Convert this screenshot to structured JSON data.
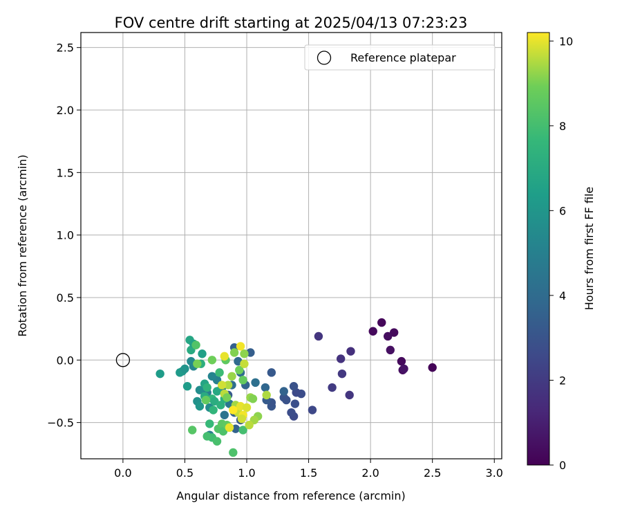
{
  "chart_data": {
    "type": "scatter",
    "title": "FOV centre drift starting at 2025/04/13 07:23:23",
    "xlabel": "Angular distance from reference (arcmin)",
    "ylabel": "Rotation from reference (arcmin)",
    "xlim": [
      -0.34,
      3.06
    ],
    "ylim": [
      -0.79,
      2.62
    ],
    "xticks": [
      "0.0",
      "0.5",
      "1.0",
      "1.5",
      "2.0",
      "2.5",
      "3.0"
    ],
    "yticks": [
      "−0.5",
      "0.0",
      "0.5",
      "1.0",
      "1.5",
      "2.0",
      "2.5"
    ],
    "grid": true,
    "legend": {
      "position": "top-right",
      "entries": [
        "Reference platepar"
      ]
    },
    "reference_point": {
      "name": "Reference platepar",
      "x": 0.0,
      "y": 0.0
    },
    "colorbar": {
      "label": "Hours from first FF file",
      "colormap": "viridis",
      "range": [
        0,
        10.2
      ],
      "ticks": [
        "0",
        "2",
        "4",
        "6",
        "8",
        "10"
      ]
    },
    "series": [
      {
        "points": [
          [
            2.5,
            -0.06,
            0.1
          ],
          [
            2.09,
            0.3,
            0.2
          ],
          [
            2.02,
            0.23,
            0.3
          ],
          [
            2.19,
            0.22,
            0.3
          ],
          [
            2.14,
            0.19,
            0.4
          ],
          [
            2.16,
            0.08,
            0.5
          ],
          [
            2.25,
            -0.01,
            0.3
          ],
          [
            2.26,
            -0.08,
            0.4
          ],
          [
            2.27,
            -0.07,
            0.6
          ],
          [
            1.84,
            0.07,
            1.6
          ],
          [
            1.58,
            0.19,
            1.8
          ],
          [
            1.76,
            0.01,
            1.7
          ],
          [
            1.77,
            -0.11,
            1.9
          ],
          [
            1.69,
            -0.22,
            2.0
          ],
          [
            1.83,
            -0.28,
            1.8
          ],
          [
            1.53,
            -0.4,
            2.5
          ],
          [
            1.44,
            -0.27,
            2.7
          ],
          [
            1.4,
            -0.26,
            2.6
          ],
          [
            1.38,
            -0.21,
            2.9
          ],
          [
            1.39,
            -0.35,
            2.8
          ],
          [
            1.38,
            -0.45,
            2.6
          ],
          [
            1.36,
            -0.42,
            2.7
          ],
          [
            1.3,
            -0.3,
            3.0
          ],
          [
            1.32,
            -0.32,
            2.9
          ],
          [
            1.3,
            -0.25,
            3.6
          ],
          [
            1.2,
            -0.1,
            3.2
          ],
          [
            1.2,
            -0.37,
            3.1
          ],
          [
            1.2,
            -0.34,
            3.0
          ],
          [
            1.16,
            -0.32,
            3.3
          ],
          [
            1.15,
            -0.22,
            3.8
          ],
          [
            1.07,
            -0.18,
            4.2
          ],
          [
            1.03,
            0.06,
            3.4
          ],
          [
            0.9,
            0.1,
            3.5
          ],
          [
            0.93,
            -0.01,
            3.9
          ],
          [
            0.95,
            -0.1,
            4.0
          ],
          [
            0.99,
            -0.2,
            3.7
          ],
          [
            0.88,
            -0.2,
            4.1
          ],
          [
            0.85,
            -0.28,
            3.3
          ],
          [
            0.9,
            -0.42,
            3.5
          ],
          [
            0.91,
            -0.55,
            3.6
          ],
          [
            0.95,
            -0.48,
            3.2
          ],
          [
            0.82,
            -0.44,
            4.4
          ],
          [
            0.86,
            -0.35,
            4.5
          ],
          [
            0.8,
            -0.22,
            4.8
          ],
          [
            0.76,
            -0.16,
            5.0
          ],
          [
            0.72,
            -0.13,
            5.2
          ],
          [
            0.68,
            -0.26,
            4.8
          ],
          [
            0.7,
            -0.38,
            5.5
          ],
          [
            0.7,
            -0.6,
            4.9
          ],
          [
            0.62,
            -0.24,
            5.6
          ],
          [
            0.6,
            -0.33,
            5.8
          ],
          [
            0.62,
            -0.37,
            6.0
          ],
          [
            0.55,
            -0.01,
            5.4
          ],
          [
            0.57,
            -0.05,
            5.3
          ],
          [
            0.52,
            -0.21,
            6.3
          ],
          [
            0.48,
            -0.09,
            6.1
          ],
          [
            0.46,
            -0.1,
            6.2
          ],
          [
            0.5,
            -0.07,
            5.9
          ],
          [
            0.3,
            -0.11,
            6.3
          ],
          [
            0.54,
            0.16,
            6.8
          ],
          [
            0.55,
            0.08,
            7.0
          ],
          [
            0.57,
            0.13,
            6.6
          ],
          [
            0.64,
            0.05,
            6.5
          ],
          [
            0.63,
            -0.03,
            7.2
          ],
          [
            0.66,
            -0.19,
            6.7
          ],
          [
            0.68,
            -0.22,
            7.4
          ],
          [
            0.66,
            -0.29,
            7.0
          ],
          [
            0.72,
            -0.31,
            7.6
          ],
          [
            0.74,
            -0.33,
            7.1
          ],
          [
            0.76,
            -0.25,
            6.9
          ],
          [
            0.73,
            -0.4,
            7.5
          ],
          [
            0.78,
            -0.1,
            7.8
          ],
          [
            0.82,
            -0.31,
            7.2
          ],
          [
            0.79,
            -0.36,
            7.3
          ],
          [
            0.7,
            -0.51,
            7.7
          ],
          [
            0.72,
            -0.62,
            7.9
          ],
          [
            0.68,
            -0.61,
            8.0
          ],
          [
            0.76,
            -0.65,
            8.1
          ],
          [
            0.77,
            -0.55,
            8.3
          ],
          [
            0.8,
            -0.51,
            8.5
          ],
          [
            0.81,
            -0.57,
            8.2
          ],
          [
            0.84,
            -0.52,
            8.6
          ],
          [
            0.86,
            -0.54,
            8.8
          ],
          [
            0.89,
            -0.74,
            8.2
          ],
          [
            0.97,
            -0.56,
            8.0
          ],
          [
            0.56,
            -0.56,
            8.4
          ],
          [
            0.59,
            0.12,
            8.3
          ],
          [
            0.67,
            -0.32,
            8.7
          ],
          [
            0.6,
            -0.03,
            9.0
          ],
          [
            0.72,
            0.0,
            8.9
          ],
          [
            0.83,
            0.0,
            8.6
          ],
          [
            0.9,
            0.06,
            9.1
          ],
          [
            0.98,
            0.05,
            9.2
          ],
          [
            0.88,
            -0.13,
            9.3
          ],
          [
            0.97,
            -0.16,
            8.7
          ],
          [
            0.94,
            -0.08,
            8.9
          ],
          [
            0.85,
            -0.2,
            9.5
          ],
          [
            0.8,
            -0.2,
            9.8
          ],
          [
            0.82,
            -0.27,
            9.6
          ],
          [
            0.84,
            -0.3,
            9.0
          ],
          [
            0.91,
            -0.36,
            9.4
          ],
          [
            0.93,
            -0.42,
            9.7
          ],
          [
            0.95,
            -0.37,
            10.0
          ],
          [
            0.97,
            -0.44,
            10.1
          ],
          [
            1.0,
            -0.38,
            9.9
          ],
          [
            1.03,
            -0.3,
            9.3
          ],
          [
            1.05,
            -0.31,
            9.1
          ],
          [
            1.09,
            -0.45,
            9.2
          ],
          [
            1.06,
            -0.48,
            9.4
          ],
          [
            1.02,
            -0.52,
            9.6
          ],
          [
            0.96,
            -0.47,
            9.8
          ],
          [
            0.86,
            -0.54,
            10.0
          ],
          [
            0.89,
            -0.4,
            10.2
          ],
          [
            0.95,
            0.11,
            10.1
          ],
          [
            0.98,
            -0.03,
            9.7
          ],
          [
            1.16,
            -0.28,
            9.5
          ],
          [
            0.82,
            0.03,
            10.0
          ]
        ]
      }
    ]
  }
}
